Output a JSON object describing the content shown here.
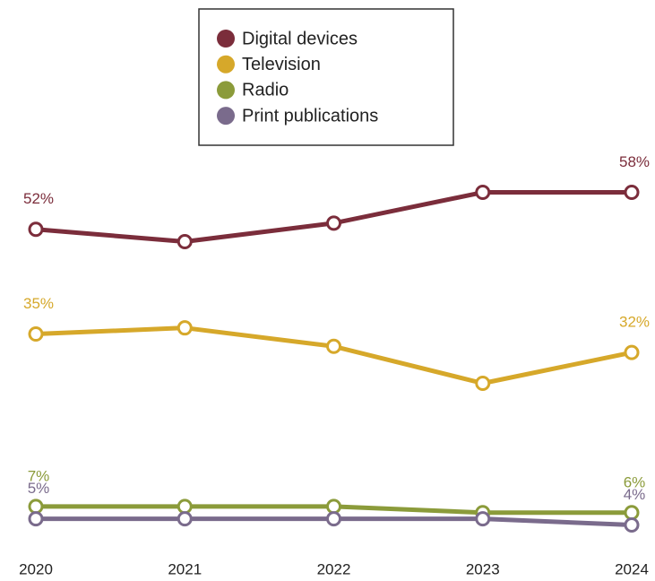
{
  "chart_data": {
    "type": "line",
    "categories": [
      "2020",
      "2021",
      "2022",
      "2023",
      "2024"
    ],
    "series": [
      {
        "name": "Digital devices",
        "color": "#7b2d3b",
        "values": [
          52,
          50,
          53,
          58,
          58
        ],
        "value_labels": [
          "52%",
          null,
          null,
          null,
          "58%"
        ]
      },
      {
        "name": "Television",
        "color": "#d6a82a",
        "values": [
          35,
          36,
          33,
          27,
          32
        ],
        "value_labels": [
          "35%",
          null,
          null,
          null,
          "32%"
        ]
      },
      {
        "name": "Radio",
        "color": "#8b9b3a",
        "values": [
          7,
          7,
          7,
          6,
          6
        ],
        "value_labels": [
          "7%",
          null,
          null,
          null,
          "6%"
        ]
      },
      {
        "name": "Print publications",
        "color": "#7a6b8c",
        "values": [
          5,
          5,
          5,
          5,
          4
        ],
        "value_labels": [
          "5%",
          null,
          null,
          null,
          "4%"
        ]
      }
    ],
    "legend": "top"
  }
}
